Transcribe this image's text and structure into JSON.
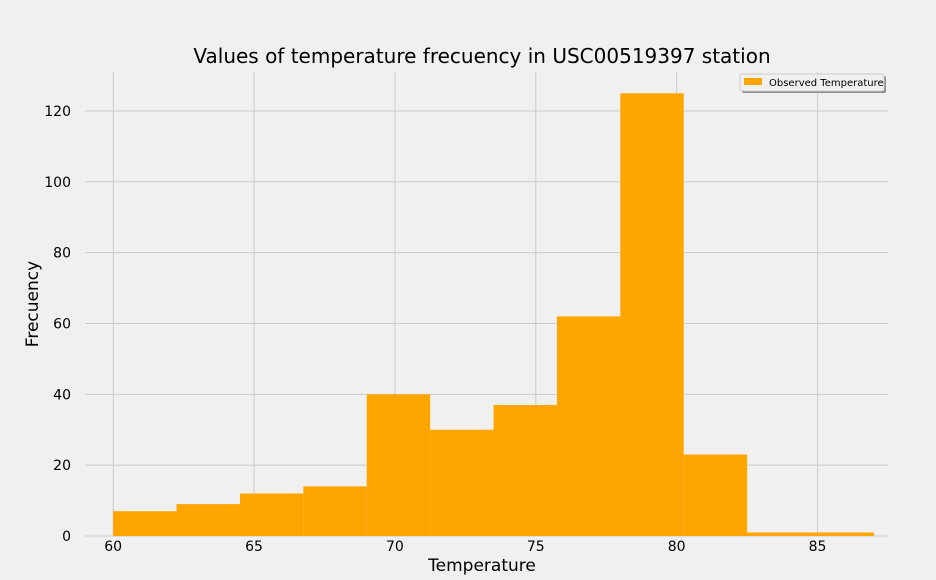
{
  "chart_data": {
    "type": "bar",
    "subtype": "histogram",
    "title": "Values of temperature frecuency in USC00519397 station",
    "xlabel": "Temperature",
    "ylabel": "Frecuency",
    "bins": [
      {
        "x0": 60.0,
        "x1": 62.25,
        "count": 7
      },
      {
        "x0": 62.25,
        "x1": 64.5,
        "count": 9
      },
      {
        "x0": 64.5,
        "x1": 66.75,
        "count": 12
      },
      {
        "x0": 66.75,
        "x1": 69.0,
        "count": 14
      },
      {
        "x0": 69.0,
        "x1": 71.25,
        "count": 40
      },
      {
        "x0": 71.25,
        "x1": 73.5,
        "count": 30
      },
      {
        "x0": 73.5,
        "x1": 75.75,
        "count": 37
      },
      {
        "x0": 75.75,
        "x1": 78.0,
        "count": 62
      },
      {
        "x0": 78.0,
        "x1": 80.25,
        "count": 125
      },
      {
        "x0": 80.25,
        "x1": 82.5,
        "count": 23
      },
      {
        "x0": 82.5,
        "x1": 84.75,
        "count": 1
      },
      {
        "x0": 84.75,
        "x1": 87.0,
        "count": 1
      }
    ],
    "xlim": [
      59.0,
      87.5
    ],
    "ylim": [
      0,
      131
    ],
    "xticks": [
      60,
      65,
      70,
      75,
      80,
      85
    ],
    "yticks": [
      0,
      20,
      40,
      60,
      80,
      100,
      120
    ],
    "grid": true,
    "legend": {
      "position": "top-right",
      "entries": [
        {
          "name": "Observed Temperature",
          "color": "#ffa500"
        }
      ]
    },
    "colors": {
      "bar": "#ffa500",
      "background": "#f0f0f0",
      "grid": "#cbcbcb",
      "text": "#000000"
    }
  }
}
